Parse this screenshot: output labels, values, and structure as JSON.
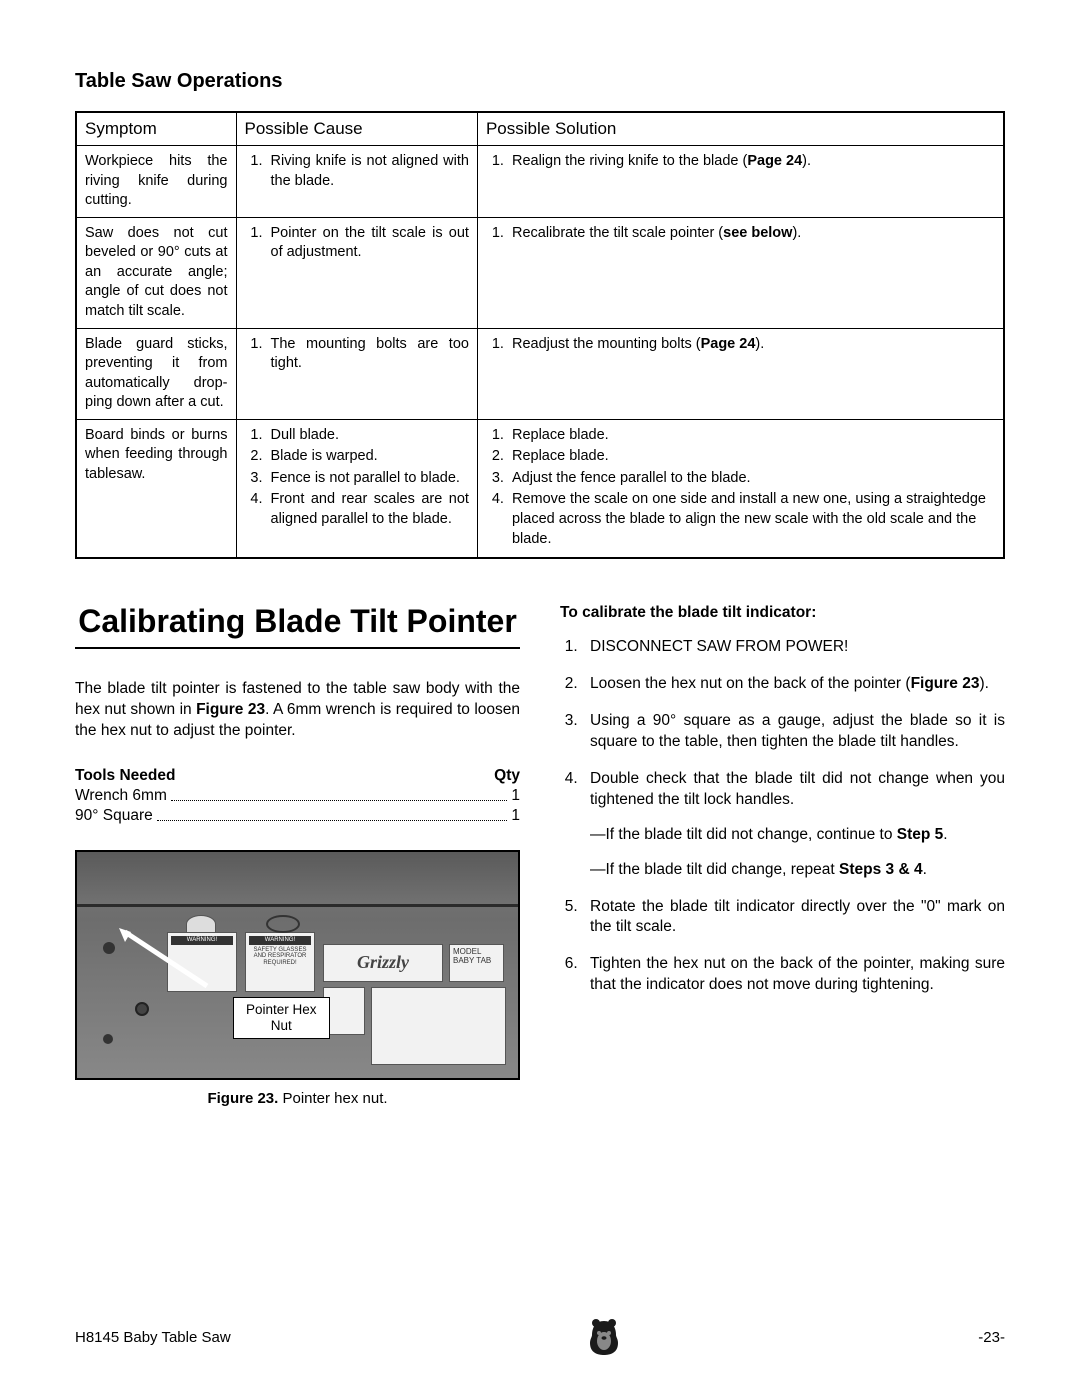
{
  "section_title": "Table Saw Operations",
  "table": {
    "headers": [
      "Symptom",
      "Possible Cause",
      "Possible Solution"
    ],
    "rows": [
      {
        "symptom": "Workpiece hits the riving knife during cutting.",
        "causes": [
          "Riving knife is not aligned with the blade."
        ],
        "solutions_html": [
          "Realign the riving knife to the blade (<b>Page 24</b>)."
        ]
      },
      {
        "symptom": "Saw does not cut beveled or 90° cuts at an accurate angle; angle of cut does not match tilt scale.",
        "causes": [
          "Pointer on the tilt scale is out of adjust­ment."
        ],
        "solutions_html": [
          "Recalibrate the tilt scale pointer (<b>see below</b>)."
        ]
      },
      {
        "symptom": "Blade guard sticks, preventing it from automatically drop­ping down after a cut.",
        "causes": [
          "The mounting bolts are too tight."
        ],
        "solutions_html": [
          "Readjust the mounting bolts (<b>Page 24</b>)."
        ]
      },
      {
        "symptom": "Board binds or burns when feeding through tablesaw.",
        "causes": [
          "Dull blade.",
          "Blade is warped.",
          "Fence is not parallel to blade.",
          "Front and rear scales are not aligned paral­lel to the blade."
        ],
        "solutions_html": [
          "Replace blade.",
          "Replace blade.",
          "Adjust the fence parallel to the blade.",
          "Remove the scale on one side and install a new one, using a straightedge placed across the blade to align the new scale with the old scale and the blade."
        ]
      }
    ]
  },
  "heading": "Calibrating Blade Tilt Pointer",
  "intro_html": "The blade tilt pointer is fastened to the table saw body with the hex nut shown in <b>Figure 23</b>. A 6mm wrench is required to loosen the hex nut to adjust the pointer.",
  "tools": {
    "header_left": "Tools Needed",
    "header_right": "Qty",
    "items": [
      {
        "name": "Wrench 6mm",
        "qty": "1"
      },
      {
        "name": "90° Square",
        "qty": "1"
      }
    ]
  },
  "figure": {
    "warning1": "WARNING!",
    "warning2": "WARNING!",
    "label2_text": "SAFETY GLASSES AND RESPIRATOR REQUIRED!",
    "brand": "Grizzly",
    "model_label": "MODEL BABY TAB",
    "callout": "Pointer Hex Nut",
    "caption_html": "<b>Figure 23.</b> Pointer hex nut."
  },
  "procedure": {
    "title": "To calibrate the blade tilt indicator:",
    "steps_html": [
      "DISCONNECT SAW FROM POWER!",
      "Loosen the hex nut on the back of the pointer (<b>Figure 23</b>).",
      "Using a 90° square as a gauge, adjust the blade so it is square to the table, then tighten the blade tilt handles.",
      "Double check that the blade tilt did not change when you tightened the tilt lock handles.<div class=\"sub\">—If the blade tilt did not change, continue to <b>Step 5</b>.</div><div class=\"sub\">—If the blade tilt did change, repeat <b>Steps 3 &amp; 4</b>.</div>",
      "Rotate the blade tilt indicator directly over the \"0\" mark on the tilt scale.",
      "Tighten the hex nut on the back of the pointer, making sure that the indicator does not move during tightening."
    ]
  },
  "footer": {
    "left": "H8145 Baby Table Saw",
    "right": "-23-"
  }
}
